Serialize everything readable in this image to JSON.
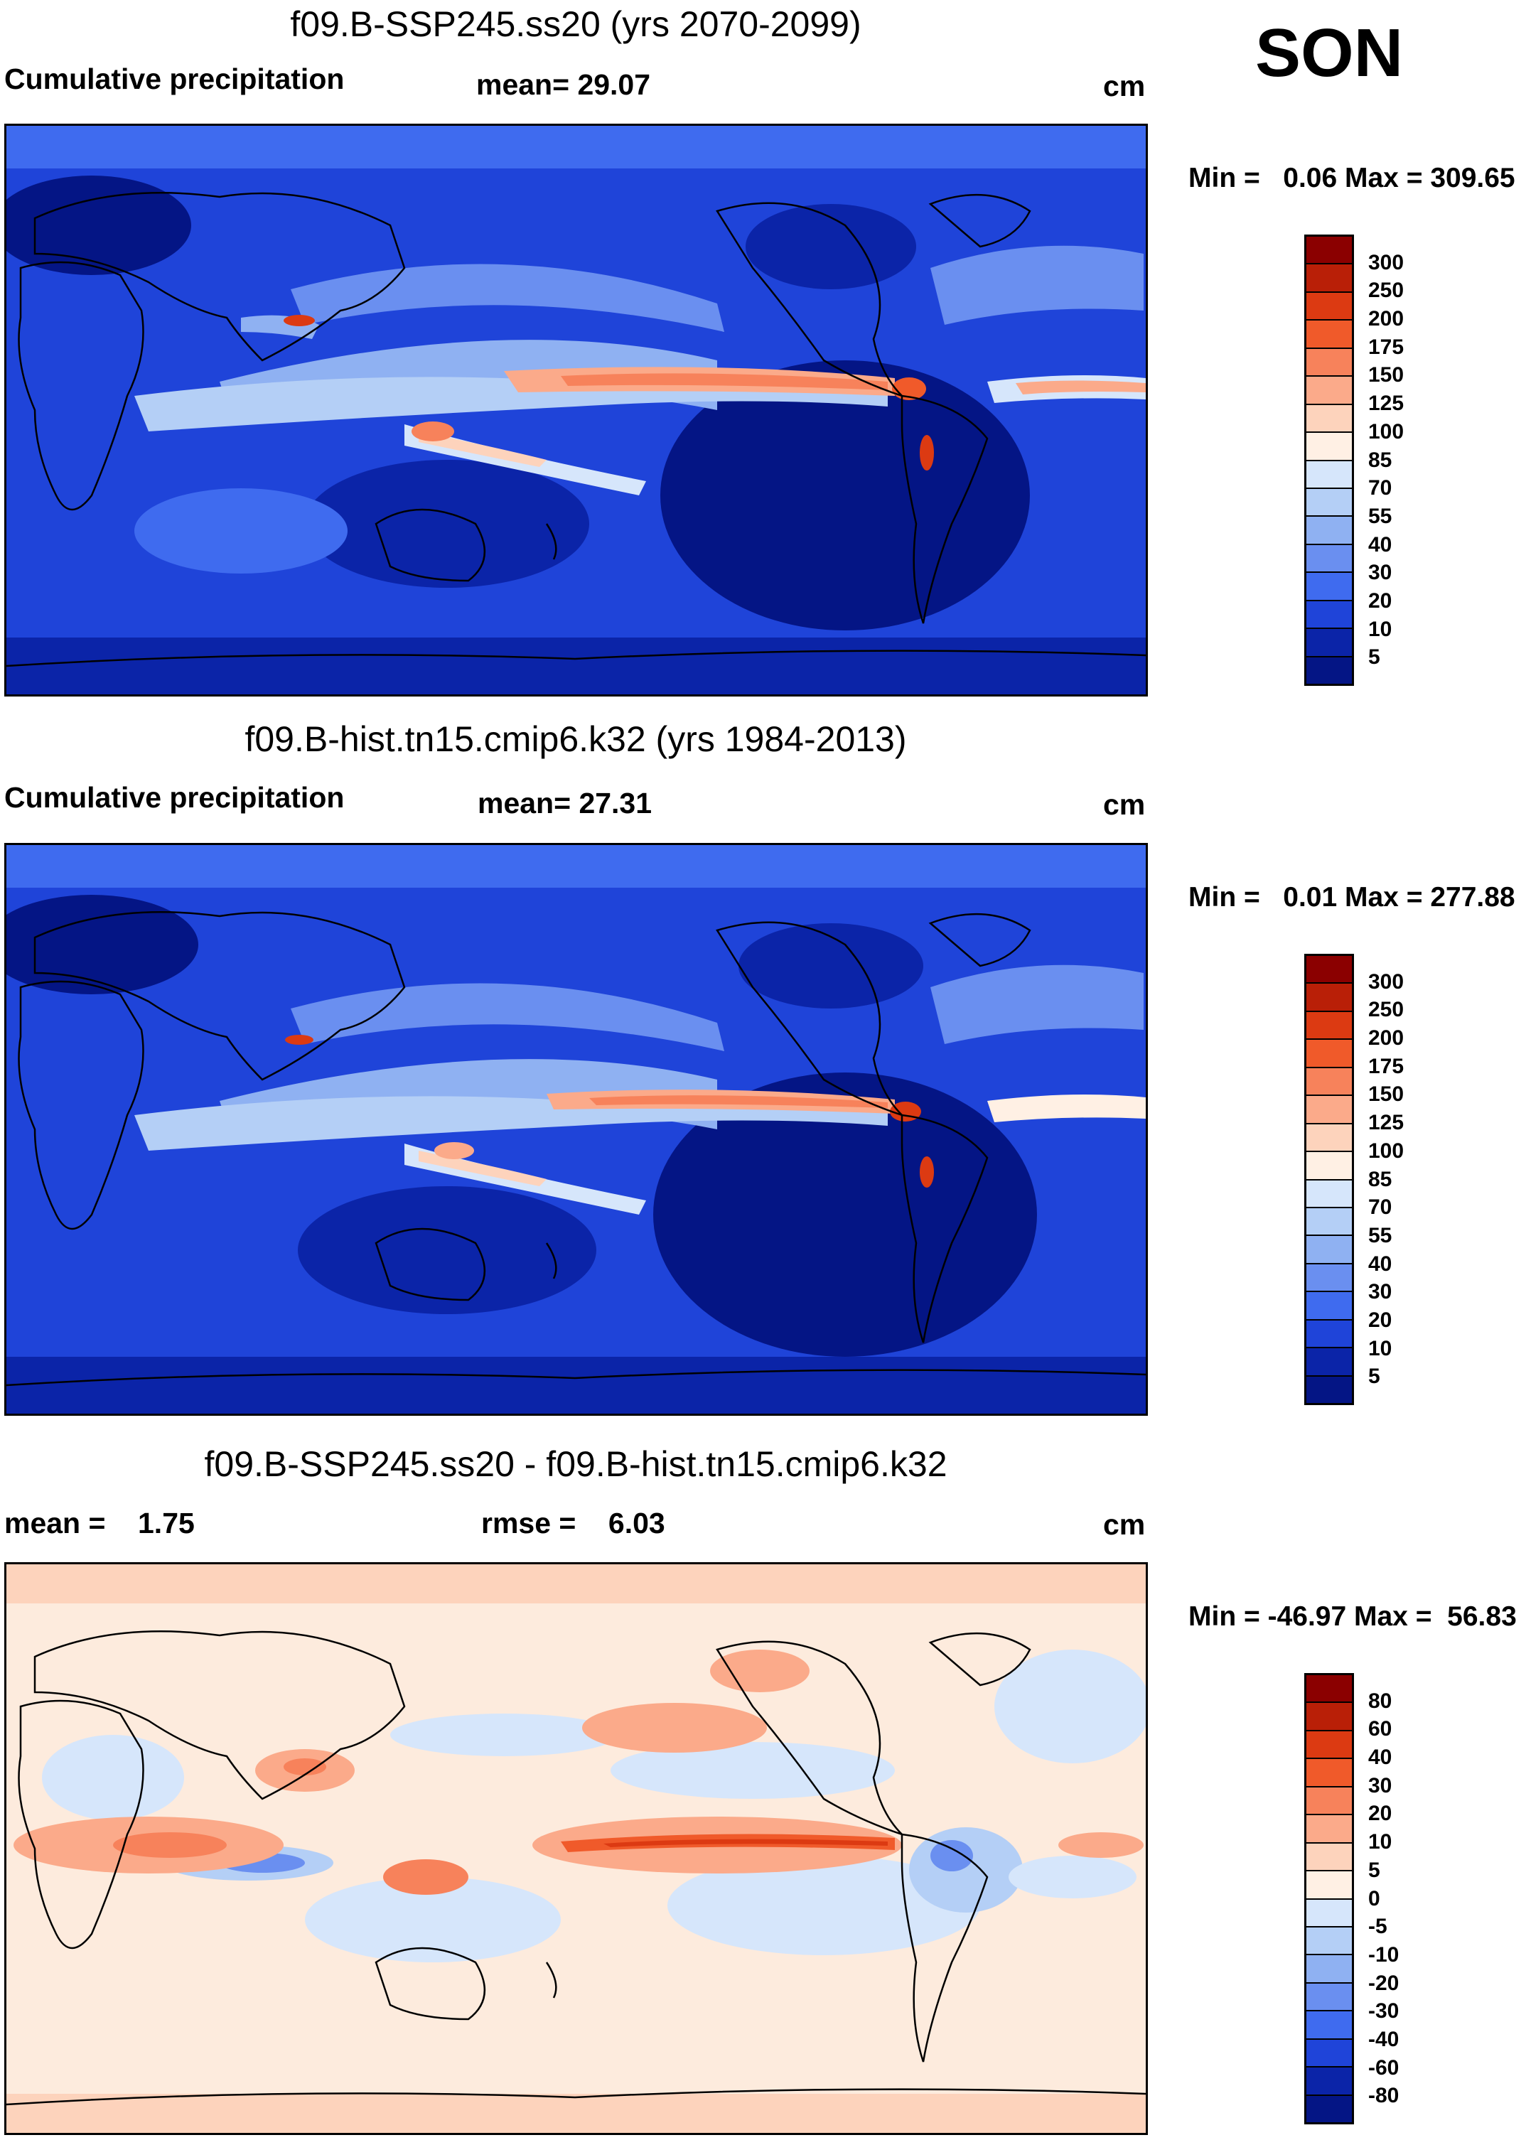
{
  "season": "SON",
  "panels": [
    {
      "title": "f09.B-SSP245.ss20 (yrs 2070-2099)",
      "left_label": "Cumulative precipitation",
      "center_label": "mean=  29.07",
      "units": "cm",
      "minmax": "Min =   0.06 Max = 309.65",
      "colorbar": {
        "labels": [
          "300",
          "250",
          "200",
          "175",
          "150",
          "125",
          "100",
          "85",
          "70",
          "55",
          "40",
          "30",
          "20",
          "10",
          "5"
        ],
        "colors": [
          "#8b0000",
          "#b91f07",
          "#dc3a12",
          "#f05a2a",
          "#f7825b",
          "#fbaa8a",
          "#fdd3bc",
          "#fff0e4",
          "#d6e6fb",
          "#b4cff6",
          "#8fb1f2",
          "#6a8ff0",
          "#3f6bef",
          "#1f44d9",
          "#0b24a8",
          "#041585"
        ]
      },
      "stats": {
        "mean": 29.07,
        "min": 0.06,
        "max": 309.65
      }
    },
    {
      "title": "f09.B-hist.tn15.cmip6.k32 (yrs 1984-2013)",
      "left_label": "Cumulative precipitation",
      "center_label": "mean=  27.31",
      "units": "cm",
      "minmax": "Min =   0.01 Max = 277.88",
      "colorbar": {
        "labels": [
          "300",
          "250",
          "200",
          "175",
          "150",
          "125",
          "100",
          "85",
          "70",
          "55",
          "40",
          "30",
          "20",
          "10",
          "5"
        ],
        "colors": [
          "#8b0000",
          "#b91f07",
          "#dc3a12",
          "#f05a2a",
          "#f7825b",
          "#fbaa8a",
          "#fdd3bc",
          "#fff0e4",
          "#d6e6fb",
          "#b4cff6",
          "#8fb1f2",
          "#6a8ff0",
          "#3f6bef",
          "#1f44d9",
          "#0b24a8",
          "#041585"
        ]
      },
      "stats": {
        "mean": 27.31,
        "min": 0.01,
        "max": 277.88
      }
    },
    {
      "title": "f09.B-SSP245.ss20 - f09.B-hist.tn15.cmip6.k32",
      "left_label": "mean =    1.75",
      "center_label": "rmse =    6.03",
      "units": "cm",
      "minmax": "Min = -46.97 Max =  56.83",
      "colorbar": {
        "labels": [
          "80",
          "60",
          "40",
          "30",
          "20",
          "10",
          "5",
          "0",
          "-5",
          "-10",
          "-20",
          "-30",
          "-40",
          "-60",
          "-80"
        ],
        "colors": [
          "#8b0000",
          "#b91f07",
          "#dc3a12",
          "#f05a2a",
          "#f7825b",
          "#fbaa8a",
          "#fdd3bc",
          "#fff0e4",
          "#d6e6fb",
          "#b4cff6",
          "#8fb1f2",
          "#6a8ff0",
          "#3f6bef",
          "#1f44d9",
          "#0b24a8",
          "#041585"
        ]
      },
      "stats": {
        "mean": 1.75,
        "rmse": 6.03,
        "min": -46.97,
        "max": 56.83
      }
    }
  ],
  "theme": {
    "ocean_low": "#041585",
    "ocean_mid": "#1f44d9",
    "wet_band": "#f7825b",
    "diff_background": "#fde6d6"
  }
}
